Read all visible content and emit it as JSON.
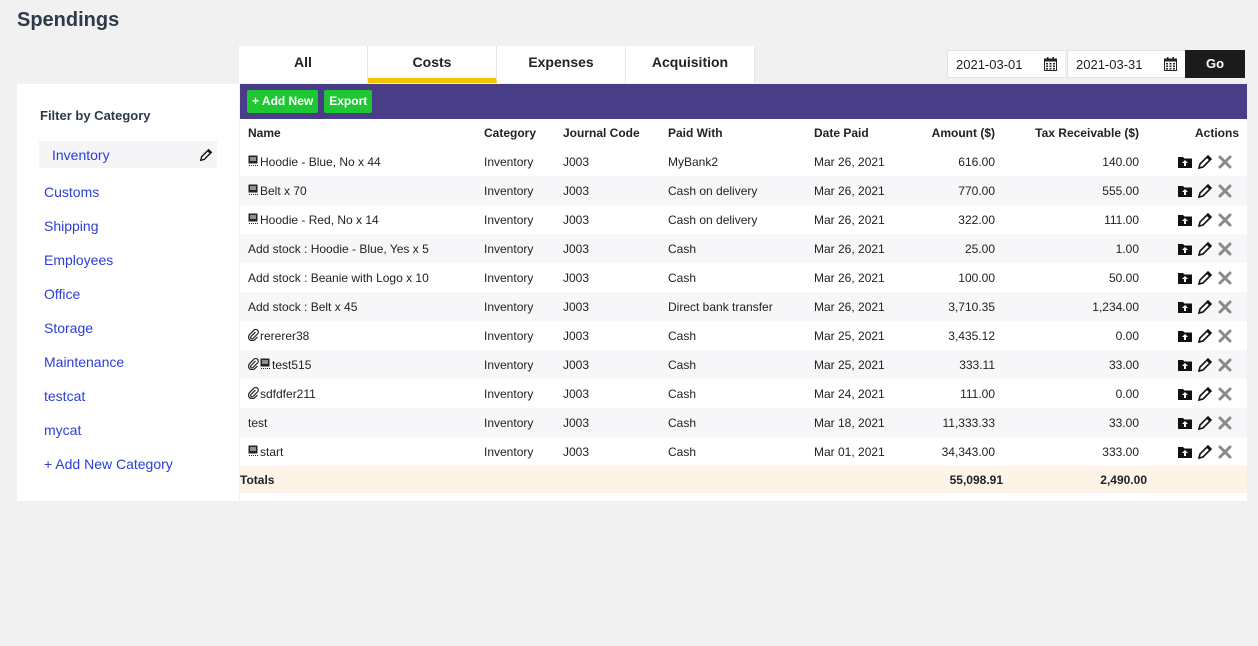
{
  "page": {
    "title": "Spendings"
  },
  "tabs": [
    {
      "label": "All"
    },
    {
      "label": "Costs"
    },
    {
      "label": "Expenses"
    },
    {
      "label": "Acquisition"
    }
  ],
  "dates": {
    "from": "2021-03-01",
    "to": "2021-03-31",
    "go_label": "Go"
  },
  "sidebar": {
    "title": "Filter by Category",
    "items": [
      {
        "label": "Inventory"
      },
      {
        "label": "Customs"
      },
      {
        "label": "Shipping"
      },
      {
        "label": "Employees"
      },
      {
        "label": "Office"
      },
      {
        "label": "Storage"
      },
      {
        "label": "Maintenance"
      },
      {
        "label": "testcat"
      },
      {
        "label": "mycat"
      }
    ],
    "add_label": "+ Add New Category"
  },
  "toolbar": {
    "add_label": "+ Add New",
    "export_label": "Export"
  },
  "table": {
    "headers": {
      "name": "Name",
      "category": "Category",
      "journal": "Journal Code",
      "paid_with": "Paid With",
      "date": "Date Paid",
      "amount": "Amount ($)",
      "tax": "Tax Receivable ($)",
      "actions": "Actions"
    },
    "rows": [
      {
        "name": "Hoodie - Blue, No x 44",
        "category": "Inventory",
        "journal": "J003",
        "paid_with": "MyBank2",
        "date": "Mar 26, 2021",
        "amount": "616.00",
        "tax": "140.00"
      },
      {
        "name": "Belt x 70",
        "category": "Inventory",
        "journal": "J003",
        "paid_with": "Cash on delivery",
        "date": "Mar 26, 2021",
        "amount": "770.00",
        "tax": "555.00"
      },
      {
        "name": "Hoodie - Red, No x 14",
        "category": "Inventory",
        "journal": "J003",
        "paid_with": "Cash on delivery",
        "date": "Mar 26, 2021",
        "amount": "322.00",
        "tax": "111.00"
      },
      {
        "name": "Add stock : Hoodie - Blue, Yes x 5",
        "category": "Inventory",
        "journal": "J003",
        "paid_with": "Cash",
        "date": "Mar 26, 2021",
        "amount": "25.00",
        "tax": "1.00"
      },
      {
        "name": "Add stock : Beanie with Logo x 10",
        "category": "Inventory",
        "journal": "J003",
        "paid_with": "Cash",
        "date": "Mar 26, 2021",
        "amount": "100.00",
        "tax": "50.00"
      },
      {
        "name": "Add stock : Belt x 45",
        "category": "Inventory",
        "journal": "J003",
        "paid_with": "Direct bank transfer",
        "date": "Mar 26, 2021",
        "amount": "3,710.35",
        "tax": "1,234.00"
      },
      {
        "name": "rererer38",
        "category": "Inventory",
        "journal": "J003",
        "paid_with": "Cash",
        "date": "Mar 25, 2021",
        "amount": "3,435.12",
        "tax": "0.00"
      },
      {
        "name": "test515",
        "category": "Inventory",
        "journal": "J003",
        "paid_with": "Cash",
        "date": "Mar 25, 2021",
        "amount": "333.11",
        "tax": "33.00"
      },
      {
        "name": "sdfdfer211",
        "category": "Inventory",
        "journal": "J003",
        "paid_with": "Cash",
        "date": "Mar 24, 2021",
        "amount": "111.00",
        "tax": "0.00"
      },
      {
        "name": "test",
        "category": "Inventory",
        "journal": "J003",
        "paid_with": "Cash",
        "date": "Mar 18, 2021",
        "amount": "11,333.33",
        "tax": "33.00"
      },
      {
        "name": "start",
        "category": "Inventory",
        "journal": "J003",
        "paid_with": "Cash",
        "date": "Mar 01, 2021",
        "amount": "34,343.00",
        "tax": "333.00"
      }
    ],
    "totals": {
      "label": "Totals",
      "amount": "55,098.91",
      "tax": "2,490.00"
    }
  },
  "icons": {
    "note": "note-icon",
    "attachment": "paperclip-icon",
    "upload": "folder-upload-icon",
    "edit": "pencil-icon",
    "delete": "close-icon"
  }
}
